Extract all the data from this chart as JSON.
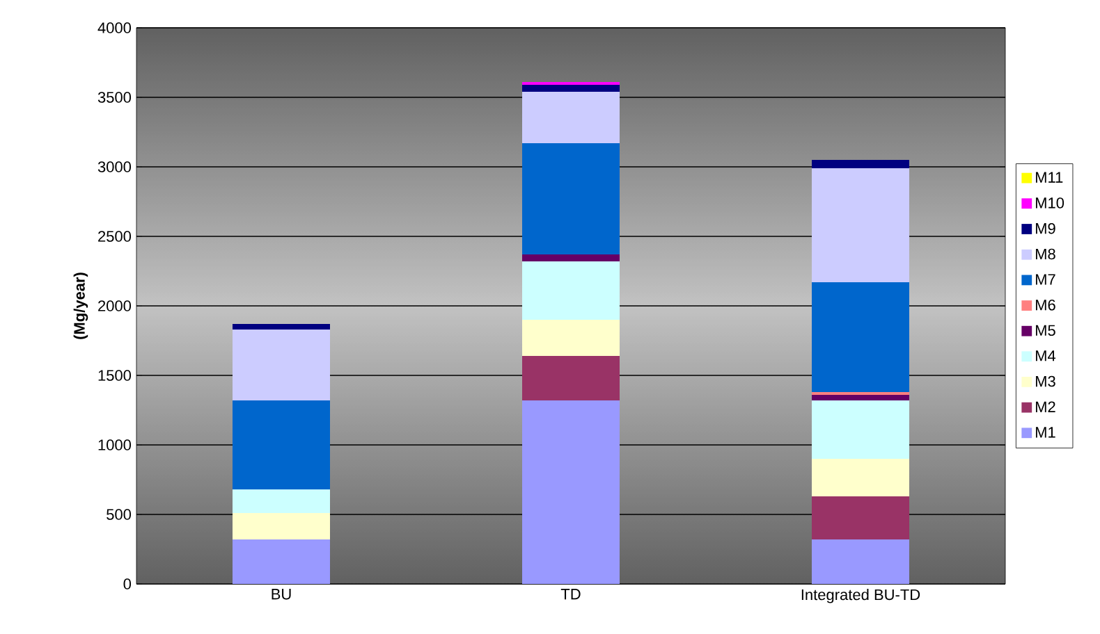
{
  "chart_data": {
    "type": "bar",
    "stacked": true,
    "ylabel": "(Mg/year)",
    "categories": [
      "BU",
      "TD",
      "Integrated BU-TD"
    ],
    "series": [
      {
        "name": "M1",
        "color": "#9999ff",
        "values": [
          320,
          1320,
          320
        ]
      },
      {
        "name": "M2",
        "color": "#993366",
        "values": [
          0,
          320,
          310
        ]
      },
      {
        "name": "M3",
        "color": "#ffffcc",
        "values": [
          190,
          260,
          270
        ]
      },
      {
        "name": "M4",
        "color": "#ccffff",
        "values": [
          170,
          420,
          420
        ]
      },
      {
        "name": "M5",
        "color": "#660066",
        "values": [
          0,
          50,
          40
        ]
      },
      {
        "name": "M6",
        "color": "#ff8080",
        "values": [
          0,
          0,
          20
        ]
      },
      {
        "name": "M7",
        "color": "#0066cc",
        "values": [
          640,
          800,
          790
        ]
      },
      {
        "name": "M8",
        "color": "#ccccff",
        "values": [
          510,
          370,
          820
        ]
      },
      {
        "name": "M9",
        "color": "#000080",
        "values": [
          40,
          50,
          60
        ]
      },
      {
        "name": "M10",
        "color": "#ff00ff",
        "values": [
          0,
          20,
          0
        ]
      },
      {
        "name": "M11",
        "color": "#ffff00",
        "values": [
          0,
          0,
          0
        ]
      }
    ],
    "ylim": [
      0,
      4000
    ],
    "yticks": [
      0,
      500,
      1000,
      1500,
      2000,
      2500,
      3000,
      3500,
      4000
    ],
    "grid": "y",
    "legend": "right"
  }
}
